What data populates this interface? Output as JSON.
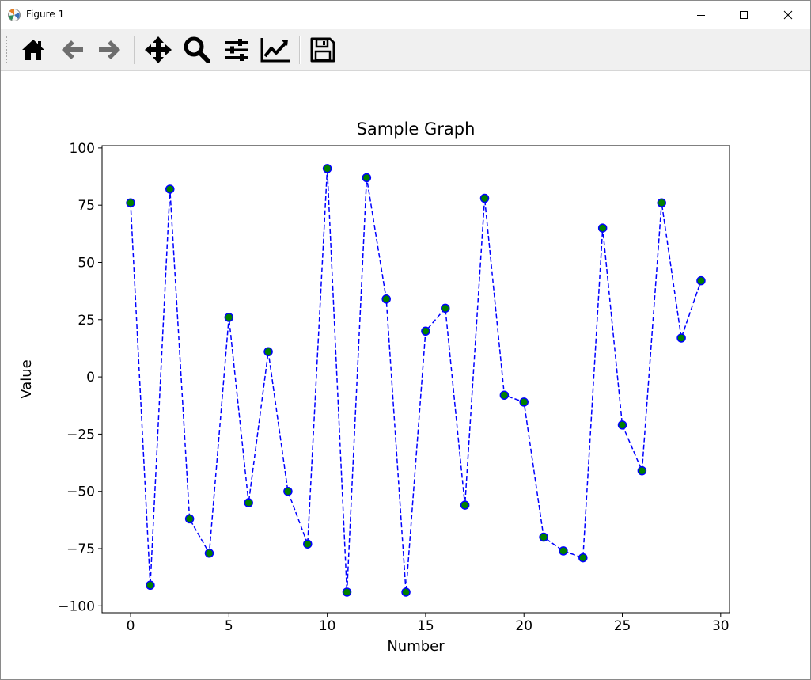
{
  "window": {
    "title": "Figure 1",
    "controls": [
      "minimize",
      "maximize",
      "close"
    ]
  },
  "toolbar": {
    "buttons": [
      {
        "name": "home",
        "icon": "home-icon"
      },
      {
        "name": "back",
        "icon": "arrow-left-icon"
      },
      {
        "name": "forward",
        "icon": "arrow-right-icon"
      },
      {
        "name": "pan",
        "icon": "move-arrows-icon"
      },
      {
        "name": "zoom",
        "icon": "magnifier-icon"
      },
      {
        "name": "configure-subplots",
        "icon": "sliders-icon"
      },
      {
        "name": "edit-axis",
        "icon": "line-chart-icon"
      },
      {
        "name": "save",
        "icon": "floppy-disk-icon"
      }
    ]
  },
  "chart_data": {
    "type": "line",
    "title": "Sample Graph",
    "xlabel": "Number",
    "ylabel": "Value",
    "xlim": [
      -1.45,
      30.45
    ],
    "ylim": [
      -103,
      101
    ],
    "xticks": [
      0,
      5,
      10,
      15,
      20,
      25,
      30
    ],
    "yticks": [
      100,
      75,
      50,
      25,
      0,
      -25,
      -50,
      -75,
      -100
    ],
    "grid": false,
    "line_color": "#0000ff",
    "line_style": "dashed",
    "marker_face_color": "#008000",
    "marker_edge_color": "#0000ff",
    "x": [
      0,
      1,
      2,
      3,
      4,
      5,
      6,
      7,
      8,
      9,
      10,
      11,
      12,
      13,
      14,
      15,
      16,
      17,
      18,
      19,
      20,
      21,
      22,
      23,
      24,
      25,
      26,
      27,
      28,
      29
    ],
    "y": [
      76,
      -91,
      82,
      -62,
      -77,
      26,
      -55,
      11,
      -50,
      -73,
      91,
      -94,
      87,
      34,
      -94,
      20,
      30,
      -56,
      78,
      -8,
      -11,
      -70,
      -76,
      -79,
      65,
      -21,
      -41,
      76,
      17,
      42
    ]
  }
}
